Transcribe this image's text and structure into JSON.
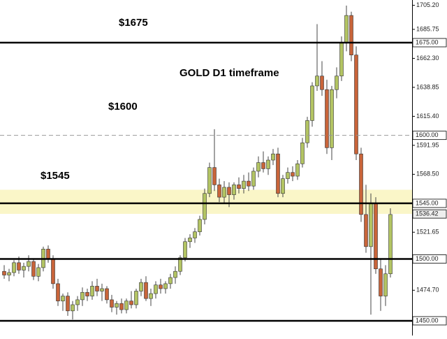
{
  "chart_data": {
    "type": "candlestick",
    "title": "GOLD D1 timeframe",
    "annotations": [
      "$1675",
      "$1600",
      "$1545"
    ],
    "ylim": [
      1438.1,
      1709.5
    ],
    "yticks": [
      {
        "value": 1705.2,
        "label": "1705.20"
      },
      {
        "value": 1685.75,
        "label": "1685.75"
      },
      {
        "value": 1662.3,
        "label": "1662.30"
      },
      {
        "value": 1638.85,
        "label": "1638.85"
      },
      {
        "value": 1615.4,
        "label": "1615.40"
      },
      {
        "value": 1591.95,
        "label": "1591.95"
      },
      {
        "value": 1568.5,
        "label": "1568.50"
      },
      {
        "value": 1521.65,
        "label": "1521.65"
      },
      {
        "value": 1474.7,
        "label": "1474.70"
      }
    ],
    "levels": [
      {
        "value": 1675,
        "label": "1675.00",
        "style": "solid"
      },
      {
        "value": 1600,
        "label": "1600.00",
        "style": "dashed"
      },
      {
        "value": 1545,
        "label": "1545.00",
        "style": "solid"
      },
      {
        "value": 1500,
        "label": "1500.00",
        "style": "solid"
      },
      {
        "value": 1450,
        "label": "1450.00",
        "style": "solid"
      }
    ],
    "current_price": {
      "value": 1536.42,
      "label": "1536.42"
    },
    "zone": [
      1536.5,
      1556
    ],
    "zone_color": "#faf6c8",
    "up_color": "#b3c463",
    "down_color": "#c8643a",
    "categories": [
      null,
      null,
      null,
      null,
      null,
      null,
      null,
      null,
      null,
      null,
      null,
      null,
      null,
      null,
      null,
      null,
      null,
      null,
      null,
      null,
      null,
      null,
      null,
      null,
      null,
      null,
      null,
      null,
      null,
      null,
      null,
      null,
      null,
      null,
      null,
      null,
      null,
      null,
      null,
      null,
      null,
      null,
      null,
      null,
      null,
      null,
      null,
      null,
      null,
      null,
      null,
      null,
      null,
      null,
      null,
      null,
      null,
      null,
      null,
      null,
      null,
      null,
      null,
      null,
      null,
      null,
      null,
      null,
      null,
      null,
      null,
      null,
      null,
      null,
      null,
      null,
      null,
      null,
      null,
      null
    ],
    "open": [
      1490,
      1487,
      1489,
      1497,
      1491,
      1494,
      1498,
      1486,
      1493,
      1508,
      1500,
      1480,
      1466,
      1470,
      1458,
      1463,
      1467,
      1473,
      1470,
      1478,
      1474,
      1476,
      1467,
      1461,
      1464,
      1459,
      1466,
      1463,
      1474,
      1481,
      1468,
      1472,
      1479,
      1476,
      1480,
      1485,
      1490,
      1501,
      1514,
      1517,
      1522,
      1532,
      1553,
      1574,
      1560,
      1550,
      1558,
      1552,
      1560,
      1557,
      1563,
      1559,
      1571,
      1578,
      1573,
      1580,
      1585,
      1553,
      1565,
      1570,
      1567,
      1577,
      1594,
      1612,
      1640,
      1648,
      1637,
      1590,
      1637,
      1648,
      1675,
      1697,
      1665,
      1585,
      1536,
      1510,
      1545,
      1492,
      1470,
      1488
    ],
    "high": [
      1495,
      1492,
      1499,
      1502,
      1497,
      1503,
      1500,
      1496,
      1510,
      1511,
      1503,
      1484,
      1472,
      1473,
      1466,
      1470,
      1477,
      1476,
      1482,
      1484,
      1480,
      1478,
      1471,
      1466,
      1468,
      1468,
      1474,
      1476,
      1484,
      1486,
      1476,
      1482,
      1484,
      1482,
      1488,
      1494,
      1503,
      1517,
      1520,
      1525,
      1535,
      1557,
      1578,
      1605,
      1565,
      1563,
      1562,
      1562,
      1566,
      1568,
      1570,
      1574,
      1583,
      1587,
      1583,
      1589,
      1590,
      1568,
      1574,
      1575,
      1580,
      1598,
      1615,
      1643,
      1690,
      1660,
      1645,
      1640,
      1655,
      1680,
      1705,
      1700,
      1672,
      1590,
      1560,
      1553,
      1550,
      1500,
      1495,
      1541
    ],
    "low": [
      1484,
      1482,
      1486,
      1488,
      1485,
      1490,
      1483,
      1482,
      1490,
      1497,
      1476,
      1462,
      1458,
      1454,
      1451,
      1458,
      1462,
      1466,
      1467,
      1470,
      1466,
      1464,
      1457,
      1455,
      1456,
      1456,
      1460,
      1460,
      1470,
      1466,
      1462,
      1468,
      1472,
      1472,
      1476,
      1480,
      1487,
      1498,
      1509,
      1513,
      1519,
      1528,
      1550,
      1555,
      1546,
      1545,
      1542,
      1548,
      1553,
      1553,
      1555,
      1556,
      1566,
      1570,
      1568,
      1576,
      1550,
      1550,
      1561,
      1563,
      1564,
      1574,
      1590,
      1607,
      1636,
      1632,
      1585,
      1580,
      1630,
      1644,
      1668,
      1660,
      1580,
      1530,
      1505,
      1455,
      1488,
      1458,
      1462,
      1485
    ],
    "close": [
      1487,
      1489,
      1497,
      1491,
      1494,
      1498,
      1486,
      1493,
      1508,
      1500,
      1480,
      1466,
      1470,
      1458,
      1463,
      1467,
      1473,
      1470,
      1478,
      1474,
      1476,
      1467,
      1461,
      1464,
      1459,
      1466,
      1463,
      1474,
      1481,
      1468,
      1472,
      1479,
      1476,
      1480,
      1485,
      1490,
      1501,
      1514,
      1517,
      1522,
      1532,
      1553,
      1574,
      1560,
      1550,
      1558,
      1552,
      1560,
      1557,
      1563,
      1559,
      1571,
      1578,
      1573,
      1580,
      1585,
      1553,
      1565,
      1570,
      1567,
      1577,
      1594,
      1612,
      1640,
      1648,
      1637,
      1590,
      1637,
      1648,
      1675,
      1697,
      1665,
      1585,
      1536,
      1510,
      1545,
      1492,
      1470,
      1488,
      1536
    ]
  }
}
